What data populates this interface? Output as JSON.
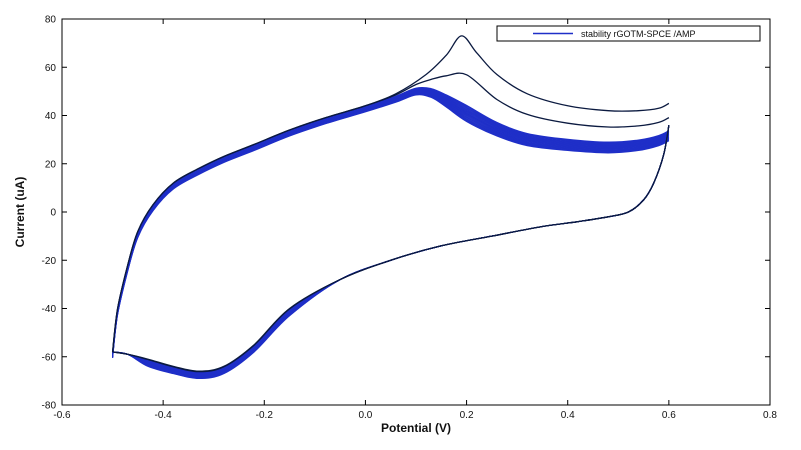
{
  "chart_data": {
    "type": "line",
    "title": "",
    "xlabel": "Potential (V)",
    "ylabel": "Current (uA)",
    "xlim": [
      -0.6,
      0.8
    ],
    "ylim": [
      -80,
      80
    ],
    "xticks": [
      -0.6,
      -0.4,
      -0.2,
      0.0,
      0.2,
      0.4,
      0.6,
      0.8
    ],
    "yticks": [
      -80,
      -60,
      -40,
      -20,
      0,
      20,
      40,
      60,
      80
    ],
    "xtick_labels": [
      "-0.6",
      "-0.4",
      "-0.2",
      "0.0",
      "0.2",
      "0.4",
      "0.6",
      "0.8"
    ],
    "ytick_labels": [
      "-80",
      "-60",
      "-40",
      "-20",
      "0",
      "20",
      "40",
      "60",
      "80"
    ],
    "grid": false,
    "legend": {
      "position": "top-right",
      "entries": [
        "stability rGOTM-SPCE /AMP"
      ]
    },
    "colors": {
      "first_cycles": "#0b1a40",
      "later_cycles": "#1f2fc8"
    },
    "series": [
      {
        "name": "stability rGOTM-SPCE /AMP",
        "cycles": 20,
        "anodic_first_cycle": {
          "x": [
            -0.5,
            -0.49,
            -0.47,
            -0.45,
            -0.42,
            -0.38,
            -0.33,
            -0.28,
            -0.22,
            -0.15,
            -0.08,
            0.0,
            0.06,
            0.12,
            0.16,
            0.19,
            0.22,
            0.26,
            0.32,
            0.4,
            0.48,
            0.54,
            0.58,
            0.6
          ],
          "y": [
            -58,
            -40,
            -22,
            -8,
            3,
            12,
            18,
            23,
            28,
            34,
            39,
            44,
            49,
            57,
            65,
            73,
            66,
            57,
            49,
            44,
            42,
            42,
            43,
            45
          ]
        },
        "anodic_later_cycles": {
          "x": [
            -0.5,
            -0.49,
            -0.47,
            -0.45,
            -0.42,
            -0.38,
            -0.33,
            -0.28,
            -0.22,
            -0.15,
            -0.08,
            0.0,
            0.06,
            0.1,
            0.13,
            0.16,
            0.2,
            0.26,
            0.32,
            0.4,
            0.48,
            0.54,
            0.58,
            0.6
          ],
          "y": [
            -58,
            -40,
            -22,
            -8,
            3,
            12,
            18,
            23,
            28,
            34,
            39,
            44,
            48,
            51,
            50,
            46,
            40,
            34,
            30,
            28,
            27,
            28,
            30,
            32
          ]
        },
        "cathodic": {
          "x": [
            0.6,
            0.59,
            0.57,
            0.55,
            0.52,
            0.48,
            0.42,
            0.35,
            0.25,
            0.15,
            0.05,
            -0.05,
            -0.15,
            -0.22,
            -0.28,
            -0.33,
            -0.38,
            -0.43,
            -0.47,
            -0.5
          ],
          "y": [
            36,
            24,
            12,
            5,
            0,
            -2,
            -4,
            -6,
            -10,
            -14,
            -20,
            -28,
            -40,
            -55,
            -64,
            -66,
            -64,
            -61,
            -59,
            -58
          ]
        }
      }
    ]
  }
}
